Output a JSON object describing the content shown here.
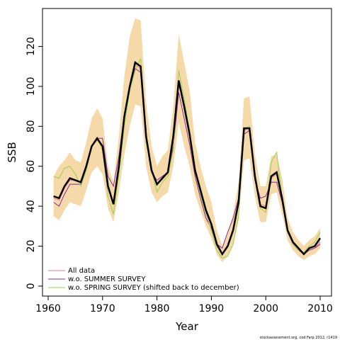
{
  "chart_data": {
    "type": "line",
    "x_label": "Year",
    "y_label": "SSB",
    "footnote": "stockassessment.org, cod Farp 2012, r1419",
    "x": [
      1961,
      1962,
      1963,
      1964,
      1965,
      1966,
      1967,
      1968,
      1969,
      1970,
      1971,
      1972,
      1973,
      1974,
      1975,
      1976,
      1977,
      1978,
      1979,
      1980,
      1981,
      1982,
      1983,
      1984,
      1985,
      1986,
      1987,
      1988,
      1989,
      1990,
      1991,
      1992,
      1993,
      1994,
      1995,
      1996,
      1997,
      1998,
      1999,
      2000,
      2001,
      2002,
      2003,
      2004,
      2005,
      2006,
      2007,
      2008,
      2009,
      2010
    ],
    "estimate": {
      "color": "#000000",
      "values": [
        45,
        44,
        50,
        54,
        53,
        52,
        60,
        70,
        74,
        70,
        50,
        41,
        60,
        85,
        100,
        112,
        110,
        75,
        58,
        51,
        54,
        57,
        75,
        103,
        90,
        76,
        58,
        48,
        38,
        31,
        21,
        16,
        20,
        28,
        42,
        79,
        79,
        55,
        40,
        39,
        55,
        57,
        44,
        28,
        22,
        19,
        16,
        19,
        20,
        24
      ]
    },
    "band": {
      "color": "#f5d9a8",
      "upper": [
        55,
        60,
        63,
        67,
        63,
        62,
        72,
        84,
        89,
        84,
        60,
        52,
        75,
        105,
        125,
        134,
        133,
        92,
        70,
        60,
        65,
        68,
        90,
        126,
        112,
        98,
        72,
        60,
        50,
        42,
        28,
        20,
        26,
        36,
        52,
        94,
        95,
        66,
        50,
        50,
        65,
        66,
        54,
        34,
        27,
        23,
        20,
        23,
        25,
        29
      ],
      "lower": [
        35,
        33,
        38,
        42,
        41,
        40,
        48,
        57,
        60,
        56,
        39,
        32,
        47,
        66,
        80,
        91,
        90,
        60,
        47,
        42,
        45,
        47,
        60,
        82,
        70,
        60,
        46,
        38,
        30,
        24,
        16,
        12,
        15,
        21,
        33,
        63,
        64,
        45,
        32,
        32,
        46,
        47,
        36,
        23,
        18,
        15,
        13,
        15,
        16,
        19
      ]
    },
    "series": [
      {
        "name": "All data",
        "color": "#f07890",
        "values": [
          44,
          43,
          49,
          53,
          53,
          52,
          60,
          70,
          73,
          70,
          51,
          42,
          60,
          85,
          100,
          111,
          109,
          75,
          59,
          51,
          54,
          57,
          74,
          101,
          89,
          75,
          57,
          47,
          37,
          30,
          20,
          16,
          20,
          28,
          42,
          78,
          79,
          55,
          41,
          40,
          54,
          56,
          44,
          28,
          22,
          18,
          16,
          18,
          19,
          22
        ]
      },
      {
        "name": "w.o. SUMMER SURVEY",
        "color": "#8a2a9a",
        "values": [
          42,
          40,
          46,
          51,
          51,
          51,
          58,
          70,
          74,
          74,
          55,
          50,
          65,
          86,
          99,
          109,
          107,
          73,
          57,
          53,
          55,
          57,
          70,
          97,
          84,
          71,
          55,
          44,
          34,
          29,
          21,
          19,
          27,
          34,
          44,
          76,
          78,
          53,
          44,
          45,
          52,
          52,
          42,
          27,
          21,
          18,
          16,
          18,
          19,
          21
        ]
      },
      {
        "name": "w.o. SPRING SURVEY (shifted back to december)",
        "color": "#9ad04a",
        "values": [
          55,
          54,
          59,
          60,
          56,
          50,
          58,
          70,
          74,
          68,
          45,
          36,
          56,
          80,
          98,
          108,
          114,
          72,
          58,
          47,
          52,
          55,
          68,
          108,
          94,
          78,
          58,
          46,
          36,
          28,
          18,
          14,
          15,
          21,
          35,
          79,
          80,
          54,
          39,
          37,
          62,
          67,
          44,
          27,
          21,
          18,
          17,
          20,
          22,
          27
        ]
      }
    ],
    "xlim": [
      1958.96,
      2012.08
    ],
    "ylim": [
      -5,
      139
    ],
    "xticks": [
      1960,
      1970,
      1980,
      1990,
      2000,
      2010
    ],
    "yticks": [
      0,
      20,
      40,
      60,
      80,
      100,
      120
    ],
    "legend": "bottom-left"
  }
}
